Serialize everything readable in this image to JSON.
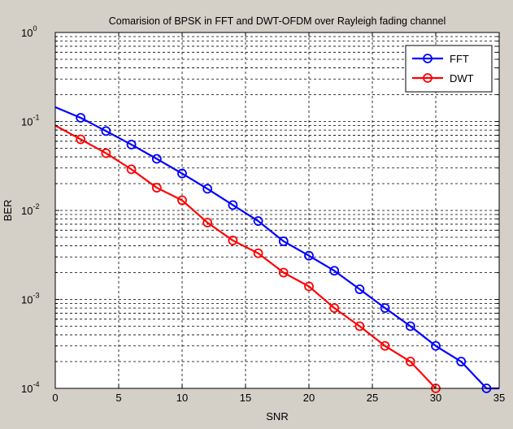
{
  "chart_data": {
    "type": "line",
    "title": "Comarision of BPSK in FFT and DWT-OFDM over Rayleigh fading channel",
    "xlabel": "SNR",
    "ylabel": "BER",
    "xlim": [
      0,
      35
    ],
    "ylim": [
      0.0001,
      1
    ],
    "yscale": "log",
    "grid": "on",
    "legend_position": "top-right",
    "x_ticks": [
      0,
      5,
      10,
      15,
      20,
      25,
      30,
      35
    ],
    "x_tick_labels": [
      "0",
      "5",
      "10",
      "15",
      "20",
      "25",
      "30",
      "35"
    ],
    "y_ticks": [
      0.0001,
      0.001,
      0.01,
      0.1,
      1
    ],
    "y_tick_labels": [
      {
        "base": "10",
        "exp": "-4"
      },
      {
        "base": "10",
        "exp": "-3"
      },
      {
        "base": "10",
        "exp": "-2"
      },
      {
        "base": "10",
        "exp": "-1"
      },
      {
        "base": "10",
        "exp": "0"
      }
    ],
    "series": [
      {
        "name": "FFT",
        "color": "#0000ff",
        "marker": "circle",
        "x": [
          0,
          2,
          4,
          6,
          8,
          10,
          12,
          14,
          16,
          18,
          20,
          22,
          24,
          26,
          28,
          30,
          32,
          34,
          35
        ],
        "y": [
          0.145,
          0.11,
          0.078,
          0.055,
          0.038,
          0.026,
          0.0175,
          0.0115,
          0.0076,
          0.0045,
          0.0031,
          0.0021,
          0.0013,
          0.0008,
          0.0005,
          0.0003,
          0.0002,
          0.0001,
          0.0001
        ],
        "markers": [
          false,
          true,
          true,
          true,
          true,
          true,
          true,
          true,
          true,
          true,
          true,
          true,
          true,
          true,
          true,
          true,
          true,
          true,
          false
        ]
      },
      {
        "name": "DWT",
        "color": "#ff0000",
        "marker": "circle",
        "x": [
          0,
          2,
          4,
          6,
          8,
          10,
          12,
          14,
          16,
          18,
          20,
          22,
          24,
          26,
          28,
          30
        ],
        "y": [
          0.09,
          0.063,
          0.044,
          0.029,
          0.018,
          0.013,
          0.0073,
          0.0046,
          0.0033,
          0.002,
          0.0014,
          0.0008,
          0.0005,
          0.0003,
          0.0002,
          0.0001
        ],
        "markers": [
          false,
          true,
          true,
          true,
          true,
          true,
          true,
          true,
          true,
          true,
          true,
          true,
          true,
          true,
          true,
          true
        ]
      }
    ]
  }
}
